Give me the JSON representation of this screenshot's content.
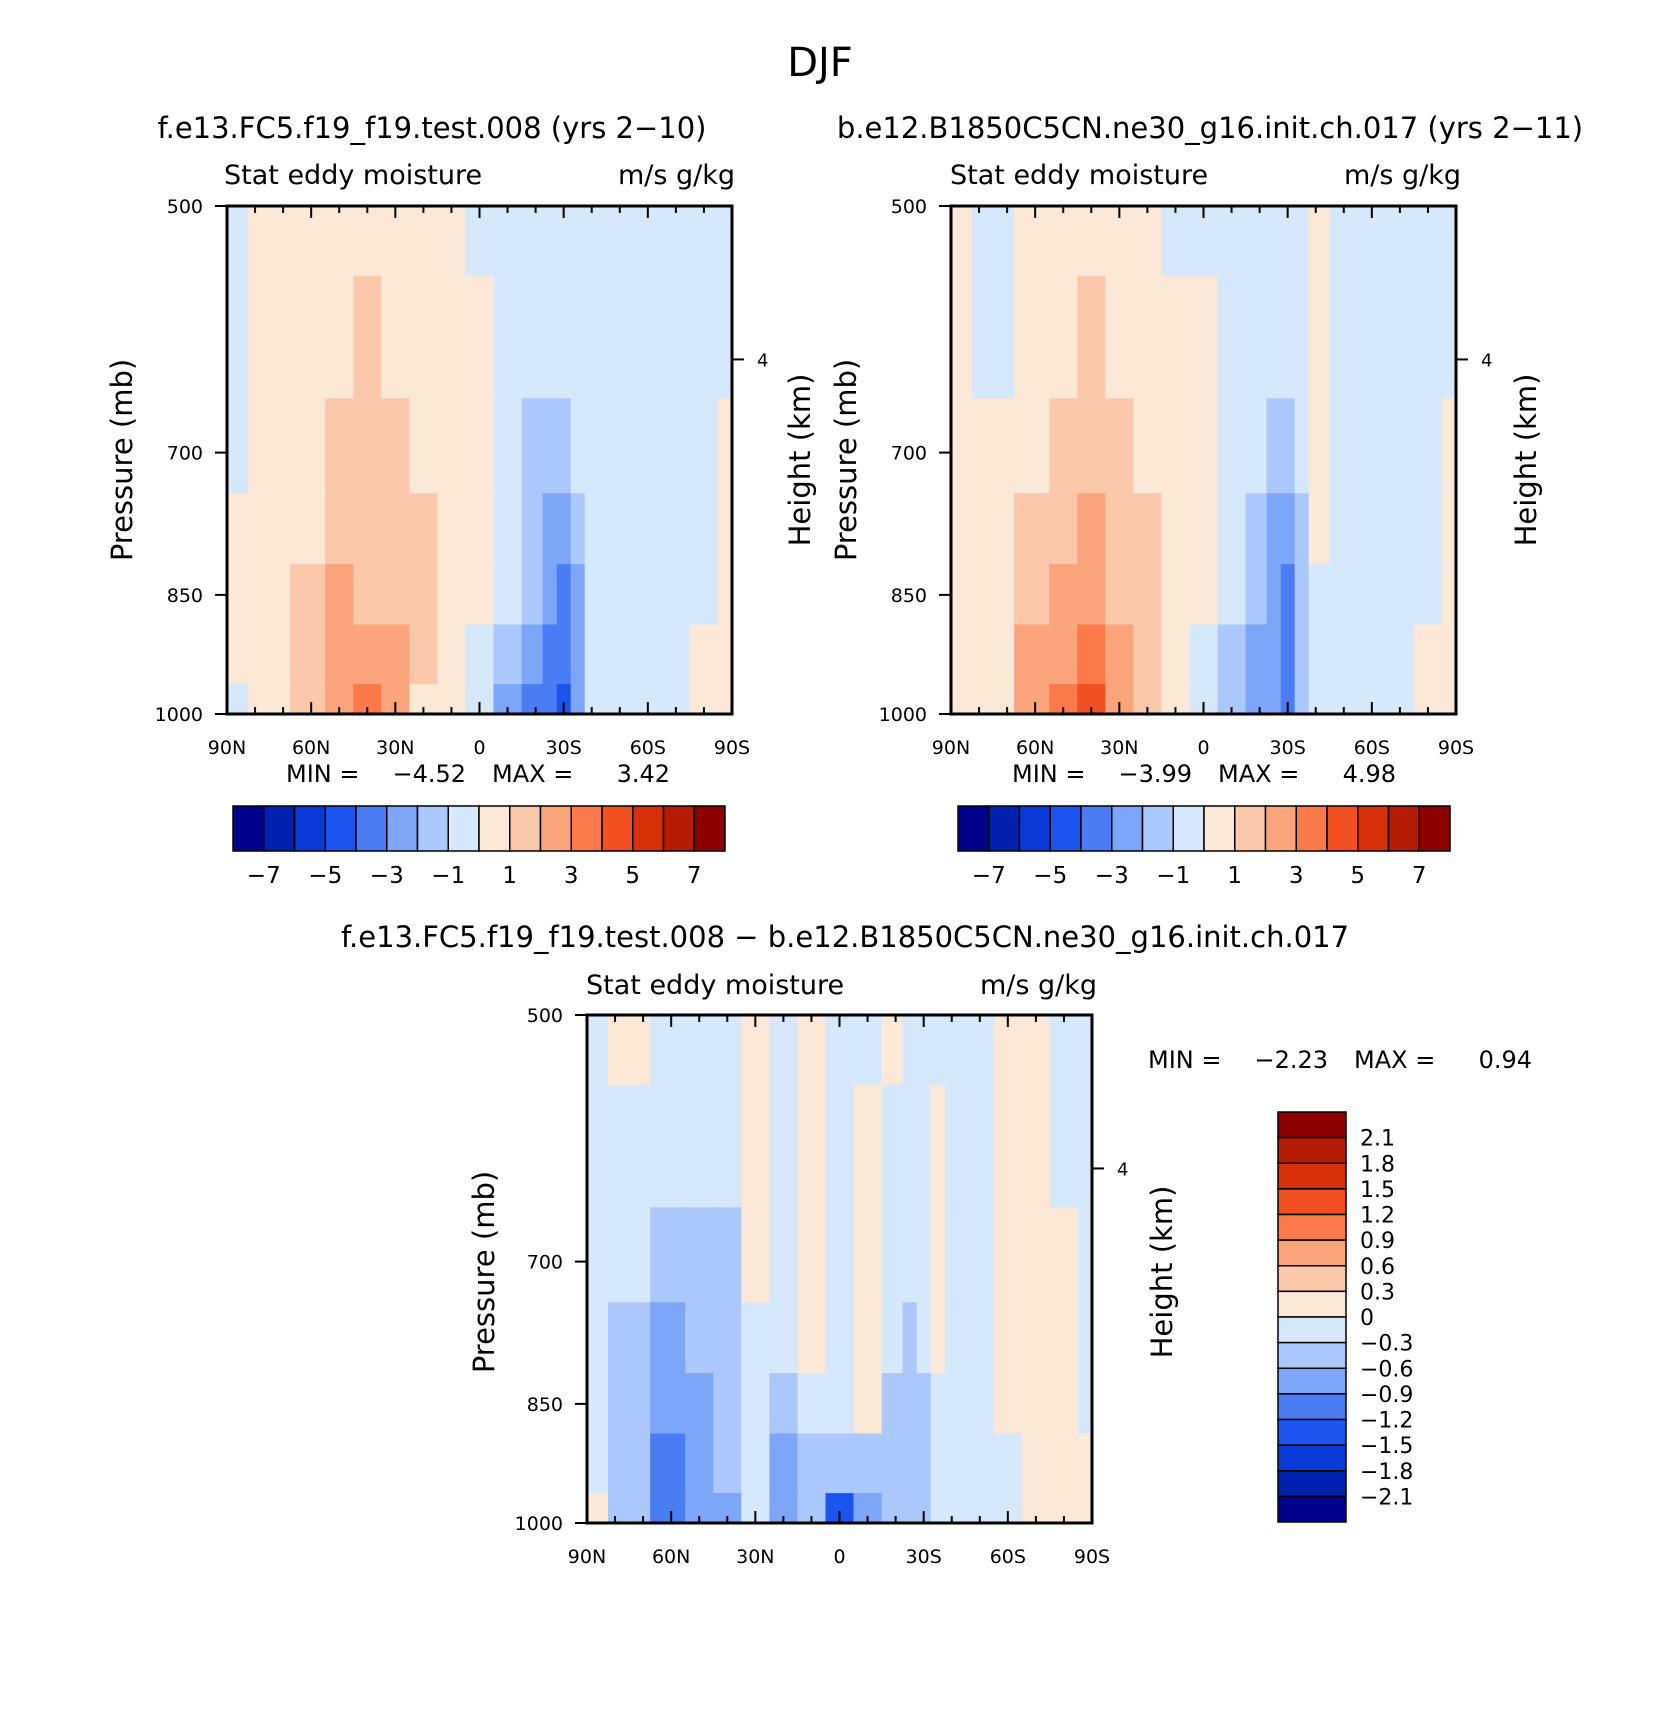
{
  "page": {
    "title": "DJF"
  },
  "colors": {
    "full_scale": [
      "#00008c",
      "#0020b0",
      "#0a3ad8",
      "#1c54f0",
      "#4a7cf4",
      "#7ea6f8",
      "#aac8fc",
      "#d6e8fc",
      "#fce8d6",
      "#fcc8aa",
      "#fca47c",
      "#fc7a4a",
      "#f25020",
      "#d83008",
      "#b41c04",
      "#8c0000"
    ],
    "diff_scale": [
      "#00008c",
      "#0020b0",
      "#0a3ad8",
      "#1c54f0",
      "#4a7cf4",
      "#7ea6f8",
      "#aac8fc",
      "#d6e8fc",
      "#fce8d6",
      "#fcc8aa",
      "#fca47c",
      "#fc7a4a",
      "#f25020",
      "#d83008",
      "#b41c04",
      "#8c0000"
    ]
  },
  "chart_data": [
    {
      "type": "heatmap",
      "title": "f.e13.FC5.f19_f19.test.008 (yrs 2−10)",
      "left_label": "Stat eddy moisture",
      "right_label": "m/s g/kg",
      "ylabel": "Pressure (mb)",
      "ylabel_right": "Height (km)",
      "x_ticks": [
        "90N",
        "60N",
        "30N",
        "0",
        "30S",
        "60S",
        "90S"
      ],
      "y_ticks": [
        "500",
        "700",
        "850",
        "1000"
      ],
      "y_right_ticks": [
        "4"
      ],
      "min_label": "MIN =",
      "min_value": "−4.52",
      "max_label": "MAX =",
      "max_value": "3.42",
      "colorbar_ticks": [
        "−7",
        "−5",
        "−3",
        "−1",
        "1",
        "3",
        "5",
        "7"
      ],
      "x": [
        90,
        75,
        60,
        50,
        40,
        30,
        20,
        10,
        0,
        -10,
        -20,
        -25,
        -30,
        -35,
        -40,
        -50,
        -60,
        -70,
        -80,
        -90
      ],
      "y": [
        500,
        600,
        700,
        780,
        850,
        920,
        1000
      ],
      "z": [
        [
          -0.5,
          0.5,
          0.5,
          0.5,
          0.5,
          0.5,
          0.5,
          0.5,
          -0.5,
          -0.5,
          -0.5,
          -0.5,
          -0.5,
          -0.5,
          -0.5,
          -0.5,
          -0.5,
          -0.5,
          -0.5,
          -0.5
        ],
        [
          -0.5,
          0.5,
          0.5,
          0.5,
          1.5,
          0.5,
          0.5,
          0.5,
          0.5,
          -0.5,
          -0.5,
          -0.5,
          -0.5,
          -0.5,
          -0.5,
          -0.5,
          -0.5,
          -0.5,
          -0.5,
          -0.5
        ],
        [
          -0.5,
          0.5,
          0.5,
          1.5,
          1.5,
          1.5,
          0.5,
          0.5,
          0.5,
          -0.5,
          -1.5,
          -1.5,
          -1.5,
          -0.5,
          -0.5,
          -0.5,
          -0.5,
          -0.5,
          -0.5,
          0.5
        ],
        [
          0.5,
          0.5,
          0.5,
          1.5,
          1.5,
          1.5,
          1.5,
          0.5,
          0.5,
          -0.5,
          -1.5,
          -2.5,
          -2.5,
          -1.5,
          -0.5,
          -0.5,
          -0.5,
          -0.5,
          -0.5,
          0.5
        ],
        [
          0.5,
          0.5,
          1.5,
          2.5,
          1.5,
          1.5,
          1.5,
          0.5,
          0.5,
          -0.5,
          -1.5,
          -2.5,
          -3.5,
          -2.5,
          -0.5,
          -0.5,
          -0.5,
          -0.5,
          -0.5,
          0.5
        ],
        [
          0.5,
          0.5,
          1.5,
          2.5,
          2.5,
          2.5,
          1.5,
          0.5,
          -0.5,
          -1.5,
          -2.5,
          -3.5,
          -3.5,
          -2.5,
          -0.5,
          -0.5,
          -0.5,
          -0.5,
          0.5,
          0.5
        ],
        [
          -0.5,
          0.5,
          1.5,
          2.5,
          3.5,
          2.5,
          0.5,
          0.5,
          -0.5,
          -2.5,
          -3.5,
          -3.5,
          -4.5,
          -2.5,
          -0.5,
          -0.5,
          -0.5,
          -0.5,
          0.5,
          0.5
        ]
      ]
    },
    {
      "type": "heatmap",
      "title": "b.e12.B1850C5CN.ne30_g16.init.ch.017 (yrs 2−11)",
      "left_label": "Stat eddy moisture",
      "right_label": "m/s g/kg",
      "ylabel": "Pressure (mb)",
      "ylabel_right": "Height (km)",
      "x_ticks": [
        "90N",
        "60N",
        "30N",
        "0",
        "30S",
        "60S",
        "90S"
      ],
      "y_ticks": [
        "500",
        "700",
        "850",
        "1000"
      ],
      "y_right_ticks": [
        "4"
      ],
      "min_label": "MIN =",
      "min_value": "−3.99",
      "max_label": "MAX =",
      "max_value": "4.98",
      "colorbar_ticks": [
        "−7",
        "−5",
        "−3",
        "−1",
        "1",
        "3",
        "5",
        "7"
      ],
      "x": [
        90,
        75,
        60,
        50,
        40,
        30,
        20,
        10,
        0,
        -10,
        -20,
        -25,
        -30,
        -35,
        -40,
        -50,
        -60,
        -70,
        -80,
        -90
      ],
      "y": [
        500,
        600,
        700,
        780,
        850,
        920,
        1000
      ],
      "z": [
        [
          0.5,
          -0.5,
          0.5,
          0.5,
          0.5,
          0.5,
          0.5,
          -0.5,
          -0.5,
          -0.5,
          -0.5,
          -0.5,
          -0.5,
          -0.5,
          0.5,
          -0.5,
          -0.5,
          -0.5,
          -0.5,
          -0.5
        ],
        [
          0.5,
          -0.5,
          0.5,
          0.5,
          1.5,
          0.5,
          0.5,
          0.5,
          0.5,
          -0.5,
          -0.5,
          -0.5,
          -0.5,
          -0.5,
          0.5,
          -0.5,
          -0.5,
          -0.5,
          -0.5,
          -0.5
        ],
        [
          0.5,
          0.5,
          0.5,
          1.5,
          1.5,
          1.5,
          0.5,
          0.5,
          0.5,
          -0.5,
          -0.5,
          -1.5,
          -1.5,
          -0.5,
          0.5,
          -0.5,
          -0.5,
          -0.5,
          -0.5,
          0.5
        ],
        [
          0.5,
          0.5,
          1.5,
          1.5,
          2.5,
          1.5,
          1.5,
          0.5,
          0.5,
          -0.5,
          -1.5,
          -2.5,
          -2.5,
          -1.5,
          0.5,
          -0.5,
          -0.5,
          -0.5,
          -0.5,
          0.5
        ],
        [
          0.5,
          0.5,
          1.5,
          2.5,
          2.5,
          1.5,
          1.5,
          0.5,
          0.5,
          -0.5,
          -1.5,
          -2.5,
          -3.5,
          -1.5,
          -0.5,
          -0.5,
          -0.5,
          -0.5,
          -0.5,
          0.5
        ],
        [
          0.5,
          0.5,
          2.5,
          2.5,
          3.5,
          2.5,
          1.5,
          0.5,
          -0.5,
          -1.5,
          -2.5,
          -2.5,
          -3.5,
          -1.5,
          -0.5,
          -0.5,
          -0.5,
          -0.5,
          0.5,
          0.5
        ],
        [
          0.5,
          0.5,
          2.5,
          3.5,
          4.5,
          2.5,
          1.5,
          0.5,
          -0.5,
          -1.5,
          -2.5,
          -2.5,
          -3.5,
          -1.5,
          -0.5,
          -0.5,
          -0.5,
          -0.5,
          0.5,
          0.5
        ]
      ]
    },
    {
      "type": "heatmap",
      "title": "f.e13.FC5.f19_f19.test.008 − b.e12.B1850C5CN.ne30_g16.init.ch.017",
      "left_label": "Stat eddy moisture",
      "right_label": "m/s g/kg",
      "ylabel": "Pressure (mb)",
      "ylabel_right": "Height (km)",
      "x_ticks": [
        "90N",
        "60N",
        "30N",
        "0",
        "30S",
        "60S",
        "90S"
      ],
      "y_ticks": [
        "500",
        "700",
        "850",
        "1000"
      ],
      "y_right_ticks": [
        "4"
      ],
      "min_label": "MIN =",
      "min_value": "−2.23",
      "max_label": "MAX =",
      "max_value": "0.94",
      "colorbar_ticks": [
        "2.1",
        "1.8",
        "1.5",
        "1.2",
        "0.9",
        "0.6",
        "0.3",
        "0",
        "−0.3",
        "−0.6",
        "−0.9",
        "−1.2",
        "−1.5",
        "−1.8",
        "−2.1"
      ],
      "x": [
        90,
        75,
        60,
        50,
        40,
        30,
        20,
        10,
        0,
        -10,
        -20,
        -25,
        -30,
        -35,
        -40,
        -50,
        -60,
        -70,
        -80,
        -90
      ],
      "y": [
        500,
        600,
        700,
        780,
        850,
        920,
        1000
      ],
      "z": [
        [
          -0.15,
          0.15,
          -0.15,
          -0.15,
          -0.15,
          0.15,
          -0.15,
          0.15,
          -0.15,
          -0.15,
          0.15,
          -0.15,
          -0.15,
          -0.15,
          -0.15,
          -0.15,
          0.15,
          0.15,
          -0.15,
          -0.15
        ],
        [
          -0.15,
          -0.15,
          -0.15,
          -0.15,
          -0.15,
          0.15,
          -0.15,
          0.15,
          -0.15,
          0.15,
          -0.15,
          -0.15,
          -0.15,
          0.15,
          -0.15,
          -0.15,
          0.15,
          0.15,
          -0.15,
          -0.15
        ],
        [
          -0.15,
          -0.15,
          -0.45,
          -0.45,
          -0.45,
          0.15,
          -0.15,
          0.15,
          -0.15,
          0.15,
          -0.15,
          -0.15,
          -0.15,
          0.15,
          -0.15,
          -0.15,
          0.15,
          0.15,
          0.15,
          -0.15
        ],
        [
          -0.15,
          -0.45,
          -0.75,
          -0.45,
          -0.45,
          -0.15,
          -0.15,
          0.15,
          -0.15,
          0.15,
          -0.15,
          -0.45,
          -0.15,
          0.15,
          -0.15,
          -0.15,
          0.15,
          0.15,
          0.15,
          -0.15
        ],
        [
          -0.15,
          -0.45,
          -0.75,
          -0.75,
          -0.45,
          -0.15,
          -0.45,
          -0.15,
          -0.15,
          0.15,
          -0.45,
          -0.45,
          -0.45,
          -0.15,
          -0.15,
          -0.15,
          0.15,
          0.15,
          0.15,
          -0.15
        ],
        [
          -0.15,
          -0.45,
          -1.05,
          -0.75,
          -0.45,
          -0.15,
          -0.75,
          -0.45,
          -0.45,
          -0.45,
          -0.45,
          -0.45,
          -0.45,
          -0.15,
          -0.15,
          -0.15,
          -0.15,
          0.15,
          0.15,
          0.15
        ],
        [
          0.15,
          -0.45,
          -1.05,
          -0.75,
          -0.75,
          -0.15,
          -0.75,
          -0.45,
          -1.35,
          -0.75,
          -0.45,
          -0.45,
          -0.45,
          -0.15,
          -0.15,
          -0.15,
          -0.15,
          0.15,
          0.15,
          0.15
        ]
      ]
    }
  ]
}
